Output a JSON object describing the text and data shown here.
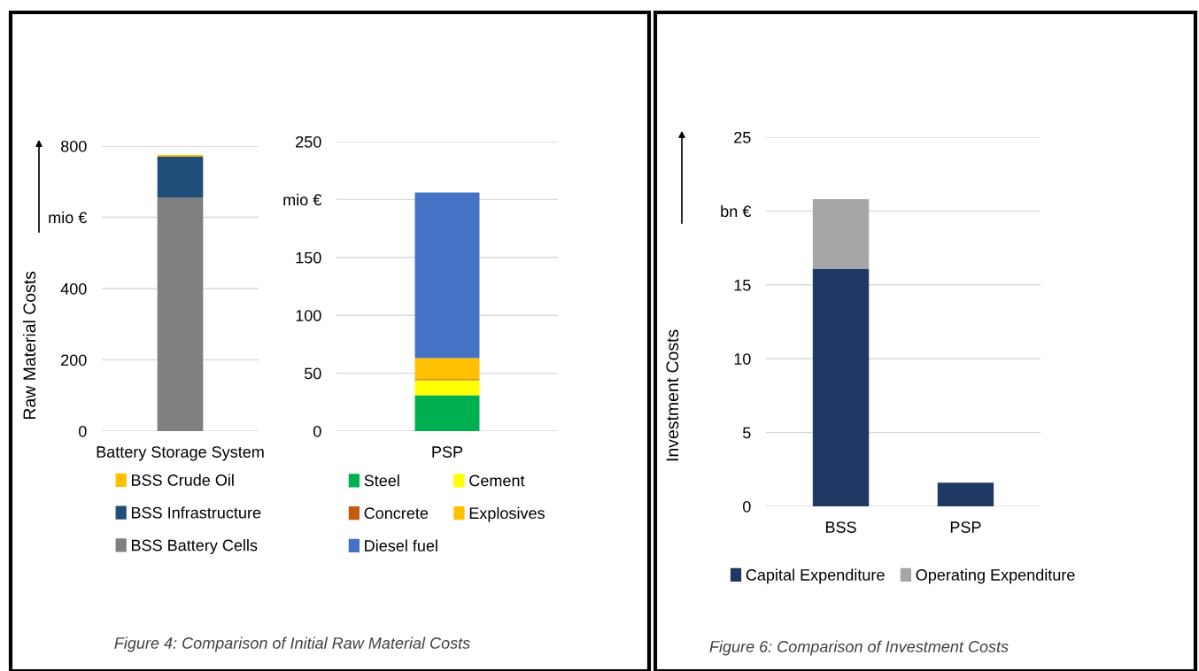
{
  "chart_data": [
    {
      "type": "bar",
      "stacked": true,
      "categories": [
        "Battery Storage System"
      ],
      "ylabel": "Raw Material Costs",
      "ylim": [
        0,
        800
      ],
      "yticks": [
        0,
        200,
        400,
        {
          "value": 600,
          "label": "mio €"
        },
        800
      ],
      "grid": "y",
      "legend": "bottom",
      "annotations": [
        "Figure 4: Comparison of Initial Raw Material Costs"
      ],
      "series": [
        {
          "name": "BSS Battery Cells",
          "color": "#7f7f7f",
          "values": [
            655
          ]
        },
        {
          "name": "BSS Infrastructure",
          "color": "#1f4e79",
          "values": [
            115
          ]
        },
        {
          "name": "BSS Crude Oil",
          "color": "#ffc000",
          "values": [
            5
          ]
        }
      ]
    },
    {
      "type": "bar",
      "stacked": true,
      "categories": [
        "PSP"
      ],
      "ylim": [
        0,
        250
      ],
      "yticks": [
        0,
        50,
        100,
        150,
        {
          "value": 200,
          "label": "mio €"
        },
        250
      ],
      "grid": "y",
      "legend": "bottom",
      "series": [
        {
          "name": "Steel",
          "color": "#00b050",
          "values": [
            31
          ]
        },
        {
          "name": "Cement",
          "color": "#ffff00",
          "values": [
            13
          ]
        },
        {
          "name": "Concrete",
          "color": "#c55a11",
          "values": [
            1
          ]
        },
        {
          "name": "Explosives",
          "color": "#ffc000",
          "values": [
            18
          ]
        },
        {
          "name": "Diesel fuel",
          "color": "#4472c4",
          "values": [
            143
          ]
        }
      ]
    },
    {
      "type": "bar",
      "stacked": true,
      "categories": [
        "BSS",
        "PSP"
      ],
      "ylabel": "Investment Costs",
      "ylim": [
        0,
        25
      ],
      "yticks": [
        0,
        5,
        10,
        15,
        {
          "value": 20,
          "label": "bn €"
        },
        25
      ],
      "grid": "y",
      "legend": "bottom",
      "annotations": [
        "Figure 6: Comparison of Investment Costs"
      ],
      "series": [
        {
          "name": "Capital Expenditure",
          "color": "#1f3864",
          "values": [
            16.1,
            1.6
          ]
        },
        {
          "name": "Operating Expenditure",
          "color": "#a6a6a6",
          "values": [
            4.7,
            null
          ]
        }
      ]
    }
  ]
}
